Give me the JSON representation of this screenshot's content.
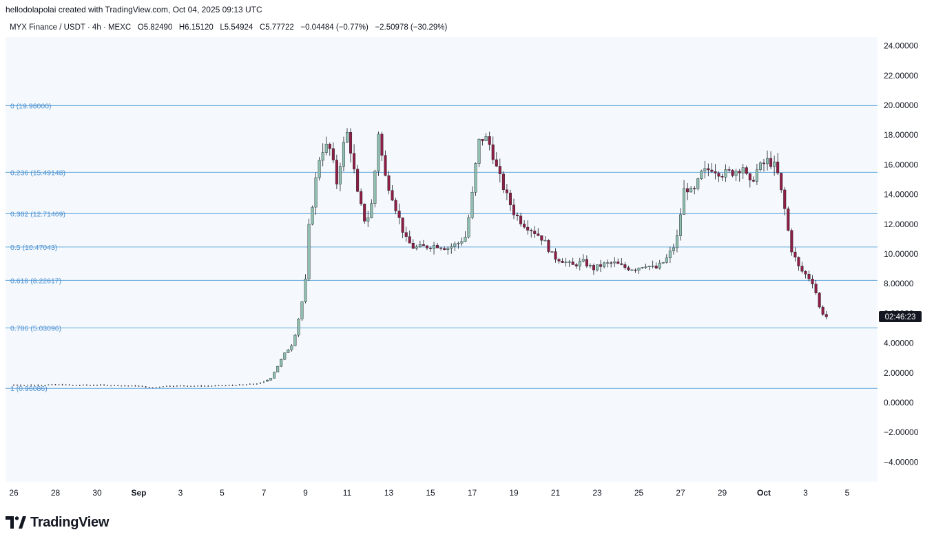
{
  "header": {
    "created_by": "hellodolapolai created with TradingView.com, Oct 04, 2025 09:13 UTC"
  },
  "symbol": {
    "info": "MYX Finance / USDT · 4h · MEXC",
    "open": "O5.82490",
    "high": "H6.15120",
    "low": "L5.54924",
    "close": "C5.77722",
    "change": "−0.04484 (−0.77%)",
    "change_total": "−2.50978 (−30.29%)"
  },
  "countdown": "02:46:23",
  "logo_text": "TradingView",
  "colors": {
    "up": "#8fbfae",
    "down": "#8e1f43",
    "fib_line": "#64a8dc",
    "fib_text": "#4d8fd0",
    "plot_bg": "#f5f9fd"
  },
  "chart_data": {
    "type": "candlestick",
    "ylim": [
      -5.2,
      26.0
    ],
    "y_ticks": [
      "24.00000",
      "22.00000",
      "20.00000",
      "18.00000",
      "16.00000",
      "14.00000",
      "12.00000",
      "10.00000",
      "8.00000",
      "6.00000",
      "4.00000",
      "2.00000",
      "0.00000",
      "−2.00000",
      "−4.00000"
    ],
    "y_tick_values": [
      24,
      22,
      20,
      18,
      16,
      14,
      12,
      10,
      8,
      6,
      4,
      2,
      0,
      -2,
      -4
    ],
    "x_labels": [
      "26",
      "28",
      "30",
      "Sep",
      "3",
      "5",
      "7",
      "9",
      "11",
      "13",
      "15",
      "17",
      "19",
      "21",
      "23",
      "25",
      "27",
      "29",
      "Oct",
      "3",
      "5"
    ],
    "x_label_days": [
      0,
      2,
      4,
      6,
      8,
      10,
      12,
      14,
      16,
      18,
      20,
      22,
      24,
      26,
      28,
      30,
      32,
      34,
      36,
      38,
      40
    ],
    "fib_levels": [
      {
        "label": "0 (19.98000)",
        "value": 19.98
      },
      {
        "label": "0.236 (15.49148)",
        "value": 15.49148
      },
      {
        "label": "0.382 (12.71469)",
        "value": 12.71469
      },
      {
        "label": "0.5 (10.47043)",
        "value": 10.47043
      },
      {
        "label": "0.618 (8.22617)",
        "value": 8.22617
      },
      {
        "label": "0.786 (5.03096)",
        "value": 5.03096
      },
      {
        "label": "1 (0.96086)",
        "value": 0.96086
      }
    ],
    "close_path": [
      [
        0,
        1.2
      ],
      [
        1,
        1.19
      ],
      [
        2,
        1.21
      ],
      [
        3,
        1.18
      ],
      [
        4,
        1.19
      ],
      [
        5,
        1.16
      ],
      [
        6,
        1.12
      ],
      [
        6.6,
        0.98
      ],
      [
        7.2,
        1.12
      ],
      [
        8,
        1.14
      ],
      [
        9,
        1.12
      ],
      [
        10,
        1.15
      ],
      [
        11,
        1.2
      ],
      [
        11.8,
        1.3
      ],
      [
        12.3,
        1.6
      ],
      [
        12.6,
        2.3
      ],
      [
        13.0,
        3.3
      ],
      [
        13.4,
        4.0
      ],
      [
        13.8,
        6.5
      ],
      [
        14.0,
        8.2
      ],
      [
        14.2,
        12.5
      ],
      [
        14.4,
        13.8
      ],
      [
        14.6,
        16.2
      ],
      [
        14.9,
        17.3
      ],
      [
        15.2,
        17.0
      ],
      [
        15.5,
        14.8
      ],
      [
        15.8,
        17.2
      ],
      [
        16.0,
        18.1
      ],
      [
        16.2,
        16.8
      ],
      [
        16.5,
        14.0
      ],
      [
        16.9,
        12.0
      ],
      [
        17.2,
        13.5
      ],
      [
        17.5,
        18.2
      ],
      [
        17.8,
        15.3
      ],
      [
        18.1,
        14.2
      ],
      [
        18.4,
        12.8
      ],
      [
        18.8,
        11.0
      ],
      [
        19.2,
        10.4
      ],
      [
        19.8,
        10.5
      ],
      [
        20.3,
        10.6
      ],
      [
        20.8,
        10.4
      ],
      [
        21.3,
        10.7
      ],
      [
        21.7,
        11.2
      ],
      [
        22.0,
        14.0
      ],
      [
        22.3,
        17.5
      ],
      [
        22.6,
        17.9
      ],
      [
        22.9,
        17.2
      ],
      [
        23.2,
        15.6
      ],
      [
        23.6,
        14.1
      ],
      [
        24.0,
        12.8
      ],
      [
        24.4,
        12.1
      ],
      [
        24.9,
        11.6
      ],
      [
        25.4,
        11.0
      ],
      [
        25.9,
        9.8
      ],
      [
        26.3,
        9.6
      ],
      [
        26.8,
        9.2
      ],
      [
        27.3,
        9.5
      ],
      [
        27.8,
        9.0
      ],
      [
        28.3,
        9.3
      ],
      [
        28.8,
        9.4
      ],
      [
        29.3,
        9.1
      ],
      [
        29.8,
        9.0
      ],
      [
        30.3,
        9.3
      ],
      [
        30.8,
        9.0
      ],
      [
        31.3,
        9.6
      ],
      [
        31.8,
        10.8
      ],
      [
        32.2,
        14.6
      ],
      [
        32.6,
        14.0
      ],
      [
        33.0,
        15.4
      ],
      [
        33.5,
        15.8
      ],
      [
        34.0,
        15.4
      ],
      [
        34.5,
        15.5
      ],
      [
        35.0,
        15.9
      ],
      [
        35.3,
        14.6
      ],
      [
        35.7,
        15.7
      ],
      [
        36.2,
        16.3
      ],
      [
        36.6,
        15.8
      ],
      [
        37.0,
        13.0
      ],
      [
        37.3,
        10.4
      ],
      [
        37.7,
        9.0
      ],
      [
        38.1,
        8.5
      ],
      [
        38.4,
        8.0
      ],
      [
        38.7,
        6.2
      ],
      [
        39.0,
        5.78
      ]
    ]
  }
}
